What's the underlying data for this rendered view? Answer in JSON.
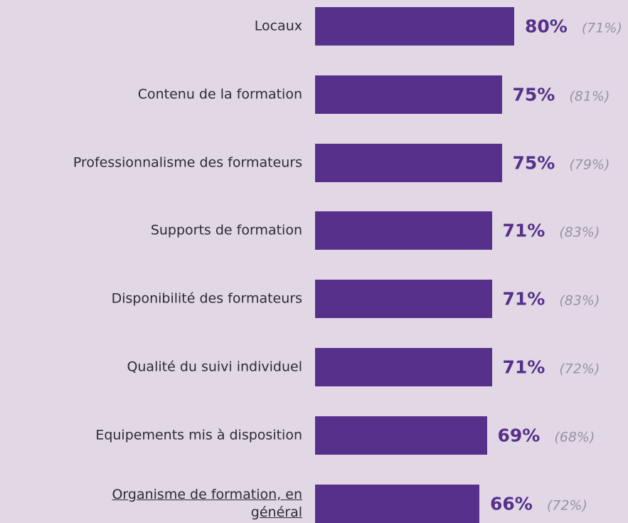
{
  "chart_data": {
    "type": "hbar",
    "categories": [
      "Locaux",
      "Contenu de la formation",
      "Professionnalisme des formateurs",
      "Supports de formation",
      "Disponibilité des formateurs",
      "Qualité du suivi individuel",
      "Equipements mis à disposition",
      "Organisme de formation, en général"
    ],
    "series": [
      {
        "color": "#56308a",
        "values": [
          80,
          75,
          75,
          71,
          71,
          71,
          69,
          66
        ],
        "value_labels": [
          "80%",
          "75%",
          "75%",
          "71%",
          "71%",
          "71%",
          "69%",
          "66%"
        ]
      },
      {
        "color": "#9a90a6",
        "values": [
          71,
          81,
          79,
          83,
          83,
          72,
          68,
          72
        ],
        "value_labels": [
          "(71%)",
          "(81%)",
          "(79%)",
          "(83%)",
          "(83%)",
          "(72%)",
          "(68%)",
          "(72%)"
        ]
      }
    ]
  }
}
